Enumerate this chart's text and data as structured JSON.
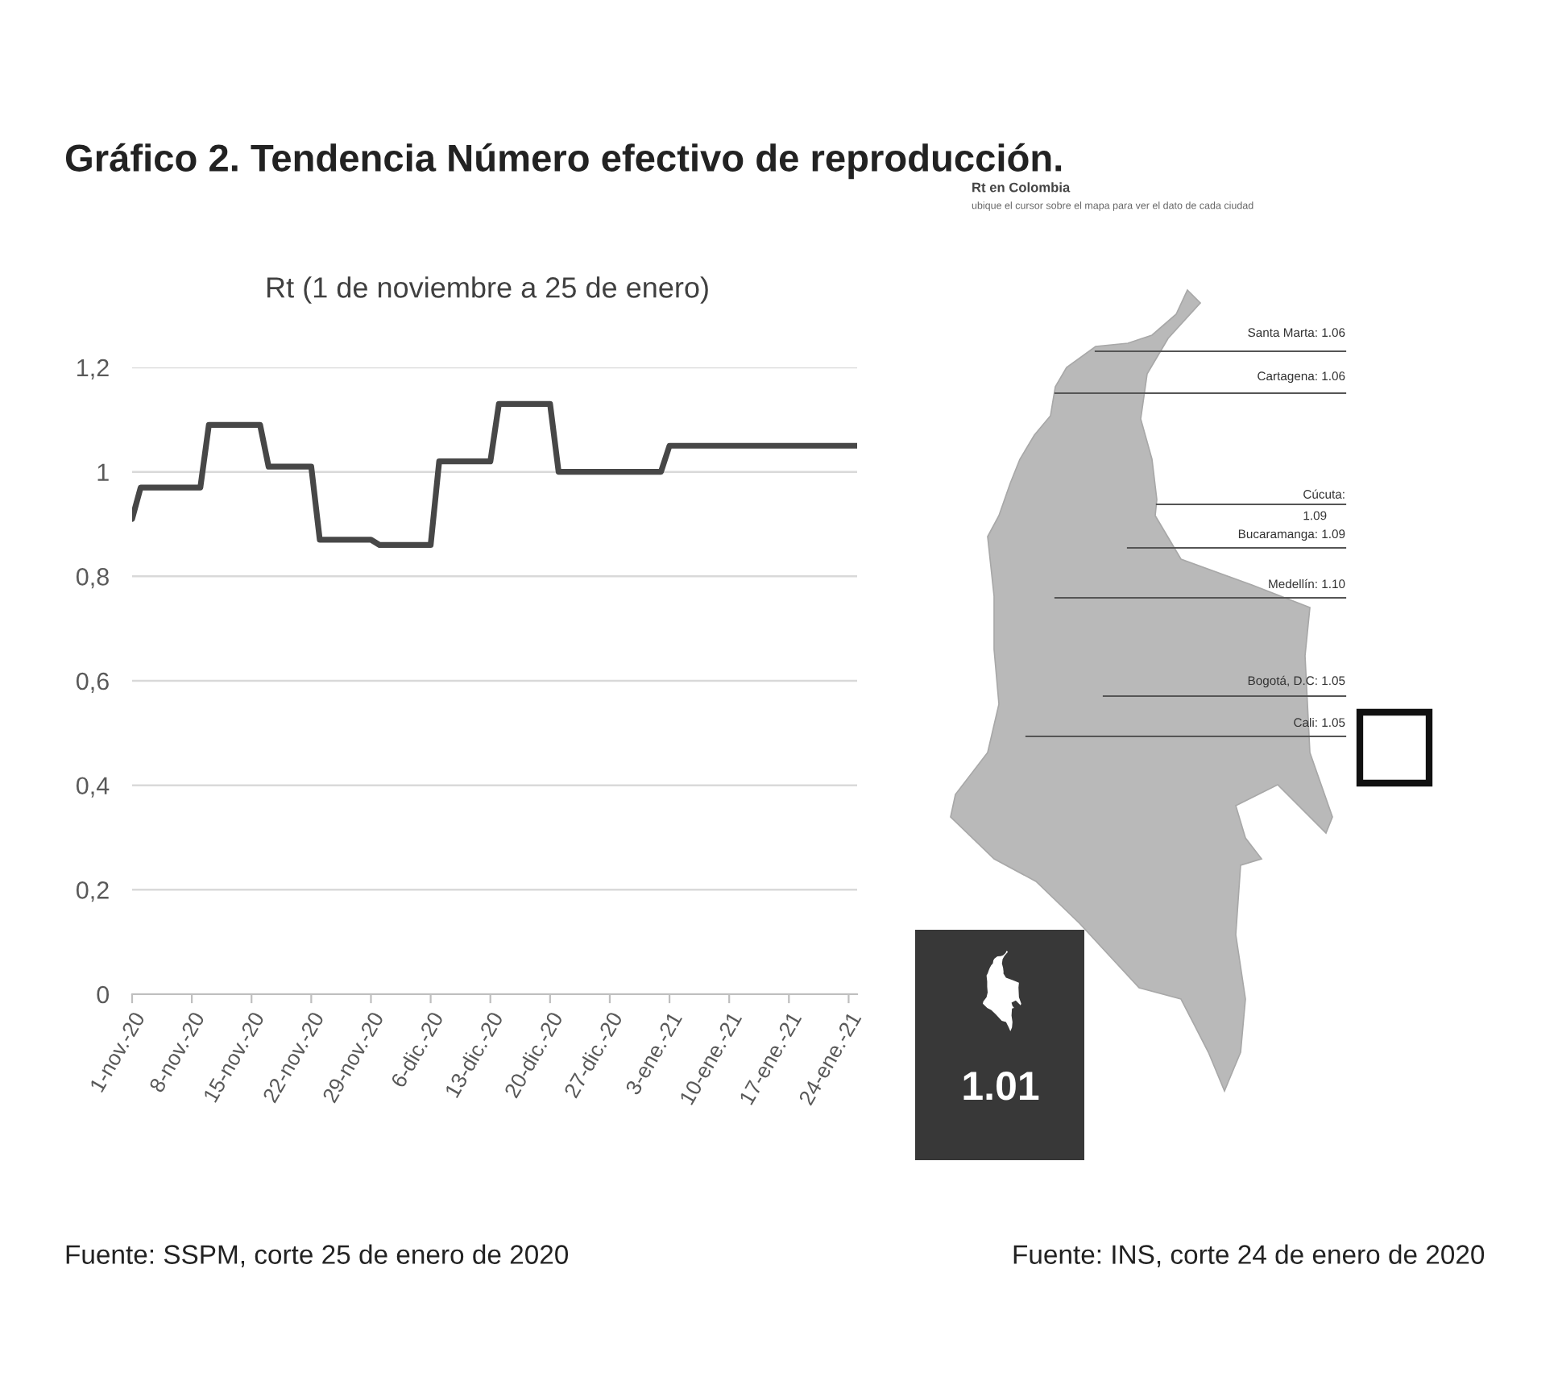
{
  "chart_data": [
    {
      "type": "line",
      "title": "Gráfico 2. Tendencia Número efectivo de reproducción.",
      "subtitle": "Rt (1 de noviembre a 25 de enero)",
      "x": [
        "2020-11-01",
        "2020-11-02",
        "2020-11-09",
        "2020-11-10",
        "2020-11-16",
        "2020-11-17",
        "2020-11-22",
        "2020-11-23",
        "2020-11-29",
        "2020-11-30",
        "2020-12-06",
        "2020-12-07",
        "2020-12-13",
        "2020-12-14",
        "2020-12-20",
        "2020-12-21",
        "2021-01-02",
        "2021-01-03",
        "2021-01-25"
      ],
      "series": [
        {
          "color": "#474747",
          "values": [
            0.91,
            0.97,
            0.97,
            1.09,
            1.09,
            1.01,
            1.01,
            0.87,
            0.87,
            0.86,
            0.86,
            1.02,
            1.02,
            1.13,
            1.13,
            1.0,
            1.0,
            1.05,
            1.05
          ]
        }
      ],
      "xlim": [
        "2020-11-01",
        "2021-01-25"
      ],
      "xticks": [
        {
          "value": "2020-11-01",
          "label": "1-nov.-20"
        },
        {
          "value": "2020-11-08",
          "label": "8-nov.-20"
        },
        {
          "value": "2020-11-15",
          "label": "15-nov.-20"
        },
        {
          "value": "2020-11-22",
          "label": "22-nov.-20"
        },
        {
          "value": "2020-11-29",
          "label": "29-nov.-20"
        },
        {
          "value": "2020-12-06",
          "label": "6-dic.-20"
        },
        {
          "value": "2020-12-13",
          "label": "13-dic.-20"
        },
        {
          "value": "2020-12-20",
          "label": "20-dic.-20"
        },
        {
          "value": "2020-12-27",
          "label": "27-dic.-20"
        },
        {
          "value": "2021-01-03",
          "label": "3-ene.-21"
        },
        {
          "value": "2021-01-10",
          "label": "10-ene.-21"
        },
        {
          "value": "2021-01-17",
          "label": "17-ene.-21"
        },
        {
          "value": "2021-01-24",
          "label": "24-ene.-21"
        }
      ],
      "ylim": [
        0,
        1.2
      ],
      "yticks": [
        0,
        {
          "value": 0.2,
          "label": "0,2"
        },
        {
          "value": 0.4,
          "label": "0,4"
        },
        {
          "value": 0.6,
          "label": "0,6"
        },
        {
          "value": 0.8,
          "label": "0,8"
        },
        1,
        {
          "value": 1.2,
          "label": "1,2"
        }
      ],
      "grid": "y",
      "annotations": [
        "Fuente: SSPM, corte 25 de enero de 2020"
      ]
    },
    {
      "type": "other",
      "title": "Rt en Colombia",
      "subtitle": "ubique el cursor sobre el mapa para ver el dato de cada ciudad",
      "annotations": [
        "Santa Marta: 1.06",
        "Cartagena: 1.06",
        "Cúcuta:\n1.09",
        "Bucaramanga: 1.09",
        "Medellín: 1.10",
        "Bogotá, D.C: 1.05",
        "Cali: 1.05",
        "1.01",
        "Fuente: INS, corte 24 de enero de 2020"
      ]
    }
  ]
}
